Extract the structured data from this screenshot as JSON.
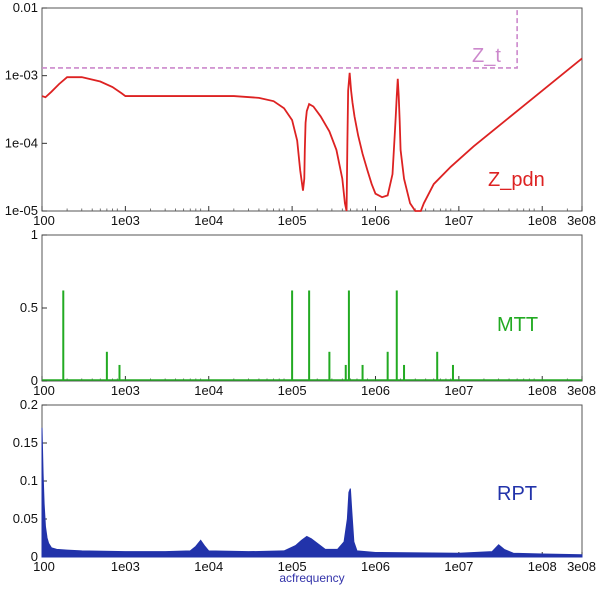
{
  "chart_data": [
    {
      "type": "line",
      "name": "impedance-panel",
      "yscale": "log",
      "xscale": "log",
      "xlim": [
        100,
        300000000
      ],
      "ylim": [
        1e-05,
        0.01
      ],
      "x_ticks": [
        {
          "v": 100,
          "label": "100"
        },
        {
          "v": 1000,
          "label": "1e03"
        },
        {
          "v": 10000,
          "label": "1e04"
        },
        {
          "v": 100000,
          "label": "1e05"
        },
        {
          "v": 1000000,
          "label": "1e06"
        },
        {
          "v": 10000000,
          "label": "1e07"
        },
        {
          "v": 100000000,
          "label": "1e08"
        },
        {
          "v": 300000000,
          "label": "3e08"
        }
      ],
      "y_ticks": [
        {
          "v": 0.01,
          "label": "0.01"
        },
        {
          "v": 0.001,
          "label": "1e-03"
        },
        {
          "v": 0.0001,
          "label": "1e-04"
        },
        {
          "v": 1e-05,
          "label": "1e-05"
        }
      ],
      "grid": false,
      "series": [
        {
          "name": "Z_pdn",
          "color": "#dd2222",
          "style": "solid",
          "x": [
            100,
            110,
            130,
            160,
            200,
            300,
            500,
            700,
            900,
            1000,
            2000,
            10000,
            20000,
            40000,
            60000,
            80000,
            100000,
            115000,
            125000,
            135000,
            140000,
            142000,
            145000,
            150000,
            160000,
            180000,
            220000,
            280000,
            340000,
            400000,
            430000,
            450000,
            460000,
            470000,
            490000,
            510000,
            530000,
            560000,
            620000,
            700000,
            800000,
            900000,
            1000000,
            1200000,
            1400000,
            1600000,
            1700000,
            1750000,
            1800000,
            1850000,
            1900000,
            1950000,
            2000000,
            2200000,
            2600000,
            3000000,
            3300000,
            3500000,
            3800000,
            5000000,
            8000000,
            15000000,
            30000000,
            60000000,
            100000000,
            200000000,
            300000000
          ],
          "y": [
            0.0005,
            0.00048,
            0.00058,
            0.00075,
            0.00095,
            0.00095,
            0.00082,
            0.00068,
            0.00055,
            0.0005,
            0.0005,
            0.0005,
            0.0005,
            0.00047,
            0.00042,
            0.00033,
            0.00022,
            0.00011,
            4e-05,
            2e-05,
            3e-05,
            8e-05,
            0.0002,
            0.0003,
            0.00038,
            0.00035,
            0.00025,
            0.00015,
            8e-05,
            3e-05,
            1.3e-05,
            1e-05,
            0.0001,
            0.0006,
            0.0011,
            0.0006,
            0.0004,
            0.00025,
            0.00013,
            7e-05,
            4e-05,
            2.5e-05,
            1.8e-05,
            1.6e-05,
            1.7e-05,
            3.5e-05,
            0.00013,
            0.00025,
            0.0005,
            0.0009,
            0.0005,
            0.00022,
            8e-05,
            3e-05,
            1.3e-05,
            1e-05,
            1e-05,
            1e-05,
            1.3e-05,
            2.5e-05,
            4.5e-05,
            9e-05,
            0.00018,
            0.00036,
            0.0006,
            0.0012,
            0.0018
          ]
        },
        {
          "name": "Z_t",
          "color": "#cc88cc",
          "style": "dashed",
          "x": [
            100,
            50000000,
            50000000
          ],
          "y": [
            0.0013,
            0.0013,
            0.01
          ]
        }
      ]
    },
    {
      "type": "bar",
      "name": "mtt-panel",
      "xscale": "log",
      "xlim": [
        100,
        300000000
      ],
      "ylim": [
        0,
        1
      ],
      "x_ticks": [
        {
          "v": 100,
          "label": "100"
        },
        {
          "v": 1000,
          "label": "1e03"
        },
        {
          "v": 10000,
          "label": "1e04"
        },
        {
          "v": 100000,
          "label": "1e05"
        },
        {
          "v": 1000000,
          "label": "1e06"
        },
        {
          "v": 10000000,
          "label": "1e07"
        },
        {
          "v": 100000000,
          "label": "1e08"
        },
        {
          "v": 300000000,
          "label": "3e08"
        }
      ],
      "y_ticks": [
        {
          "v": 1,
          "label": "1"
        },
        {
          "v": 0.5,
          "label": "0.5"
        },
        {
          "v": 0,
          "label": "0"
        }
      ],
      "grid": false,
      "series": [
        {
          "name": "MTT",
          "color": "#22aa22",
          "x": [
            180,
            600,
            850,
            100000,
            160000,
            280000,
            440000,
            480000,
            700000,
            1400000,
            1800000,
            2200000,
            5500000,
            8500000
          ],
          "y": [
            0.62,
            0.2,
            0.11,
            0.62,
            0.62,
            0.2,
            0.11,
            0.62,
            0.11,
            0.2,
            0.62,
            0.11,
            0.2,
            0.11
          ]
        }
      ]
    },
    {
      "type": "area",
      "name": "rpt-panel",
      "xscale": "log",
      "xlim": [
        100,
        300000000
      ],
      "ylim": [
        0,
        0.2
      ],
      "xlabel": "acfrequency",
      "x_ticks": [
        {
          "v": 100,
          "label": "100"
        },
        {
          "v": 1000,
          "label": "1e03"
        },
        {
          "v": 10000,
          "label": "1e04"
        },
        {
          "v": 100000,
          "label": "1e05"
        },
        {
          "v": 1000000,
          "label": "1e06"
        },
        {
          "v": 10000000,
          "label": "1e07"
        },
        {
          "v": 100000000,
          "label": "1e08"
        },
        {
          "v": 300000000,
          "label": "3e08"
        }
      ],
      "y_ticks": [
        {
          "v": 0.2,
          "label": "0.2"
        },
        {
          "v": 0.15,
          "label": "0.15"
        },
        {
          "v": 0.1,
          "label": "0.1"
        },
        {
          "v": 0.05,
          "label": "0.05"
        },
        {
          "v": 0,
          "label": "0"
        }
      ],
      "grid": false,
      "series": [
        {
          "name": "RPT",
          "color": "#2233aa",
          "x": [
            100,
            103,
            106,
            110,
            115,
            120,
            130,
            150,
            200,
            300,
            1000,
            3000,
            6000,
            7000,
            8000,
            9000,
            10000,
            30000,
            80000,
            110000,
            130000,
            150000,
            170000,
            200000,
            250000,
            350000,
            420000,
            460000,
            480000,
            500000,
            520000,
            550000,
            600000,
            1000000,
            10000000,
            25000000,
            30000000,
            35000000,
            45000000,
            100000000,
            300000000
          ],
          "y": [
            0.17,
            0.11,
            0.07,
            0.04,
            0.025,
            0.018,
            0.012,
            0.01,
            0.009,
            0.008,
            0.007,
            0.007,
            0.008,
            0.014,
            0.022,
            0.014,
            0.008,
            0.007,
            0.008,
            0.015,
            0.022,
            0.027,
            0.024,
            0.018,
            0.01,
            0.01,
            0.02,
            0.05,
            0.085,
            0.09,
            0.06,
            0.02,
            0.008,
            0.006,
            0.005,
            0.007,
            0.016,
            0.01,
            0.005,
            0.004,
            0.003
          ]
        }
      ]
    }
  ]
}
